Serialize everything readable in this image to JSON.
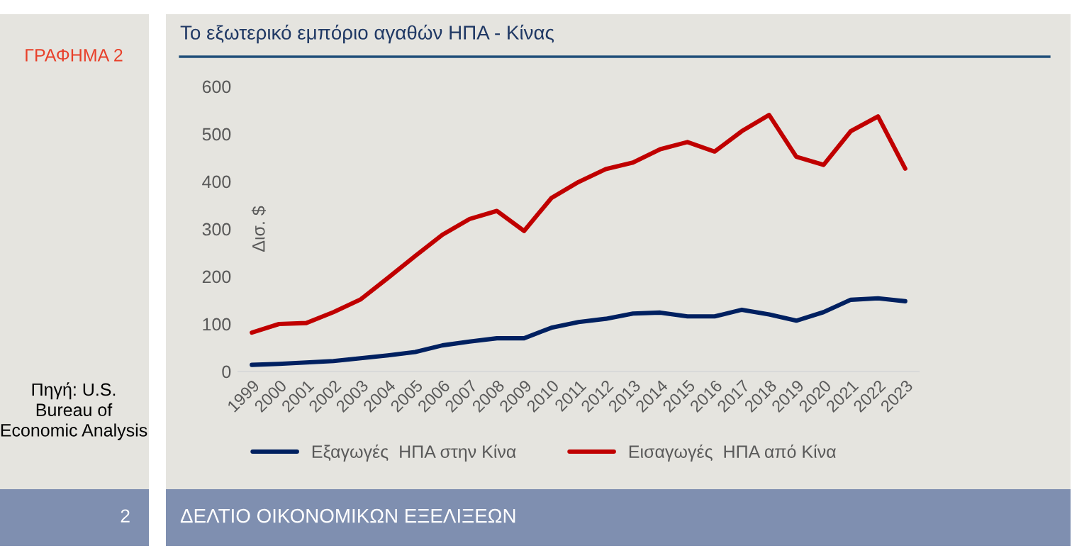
{
  "chart_data": {
    "type": "line",
    "title": "Το εξωτερικό εμπόριο αγαθών ΗΠΑ - Κίνας",
    "ylabel": "Δισ. $",
    "categories": [
      "1999",
      "2000",
      "2001",
      "2002",
      "2003",
      "2004",
      "2005",
      "2006",
      "2007",
      "2008",
      "2009",
      "2010",
      "2011",
      "2012",
      "2013",
      "2014",
      "2015",
      "2016",
      "2017",
      "2018",
      "2019",
      "2020",
      "2021",
      "2022",
      "2023"
    ],
    "series": [
      {
        "name": "Εξαγωγές  ΗΠΑ στην Κίνα",
        "color": "#002060",
        "values": [
          14,
          16,
          19,
          22,
          28,
          34,
          41,
          55,
          63,
          70,
          70,
          92,
          104,
          111,
          122,
          124,
          116,
          116,
          130,
          120,
          107,
          125,
          151,
          154,
          148
        ]
      },
      {
        "name": "Εισαγωγές  ΗΠΑ από Κίνα",
        "color": "#c00000",
        "values": [
          82,
          100,
          102,
          125,
          152,
          197,
          243,
          288,
          321,
          338,
          296,
          365,
          399,
          426,
          440,
          468,
          483,
          463,
          506,
          540,
          452,
          435,
          506,
          537,
          427
        ]
      }
    ],
    "ylim": [
      0,
      600
    ],
    "yticks": [
      0,
      100,
      200,
      300,
      400,
      500,
      600
    ],
    "grid": false,
    "legend": "bottom",
    "marker": "none",
    "line_style": "solid",
    "annotations": [
      "ΓΡΑΦΗΜΑ 2",
      "Πηγή: U.S. Bureau of Economic Analysis",
      "2",
      "ΔΕΛΤΙΟ ΟΙΚΟΝΟΜΙΚΩΝ ΕΞΕΛΙΞΕΩΝ"
    ]
  }
}
